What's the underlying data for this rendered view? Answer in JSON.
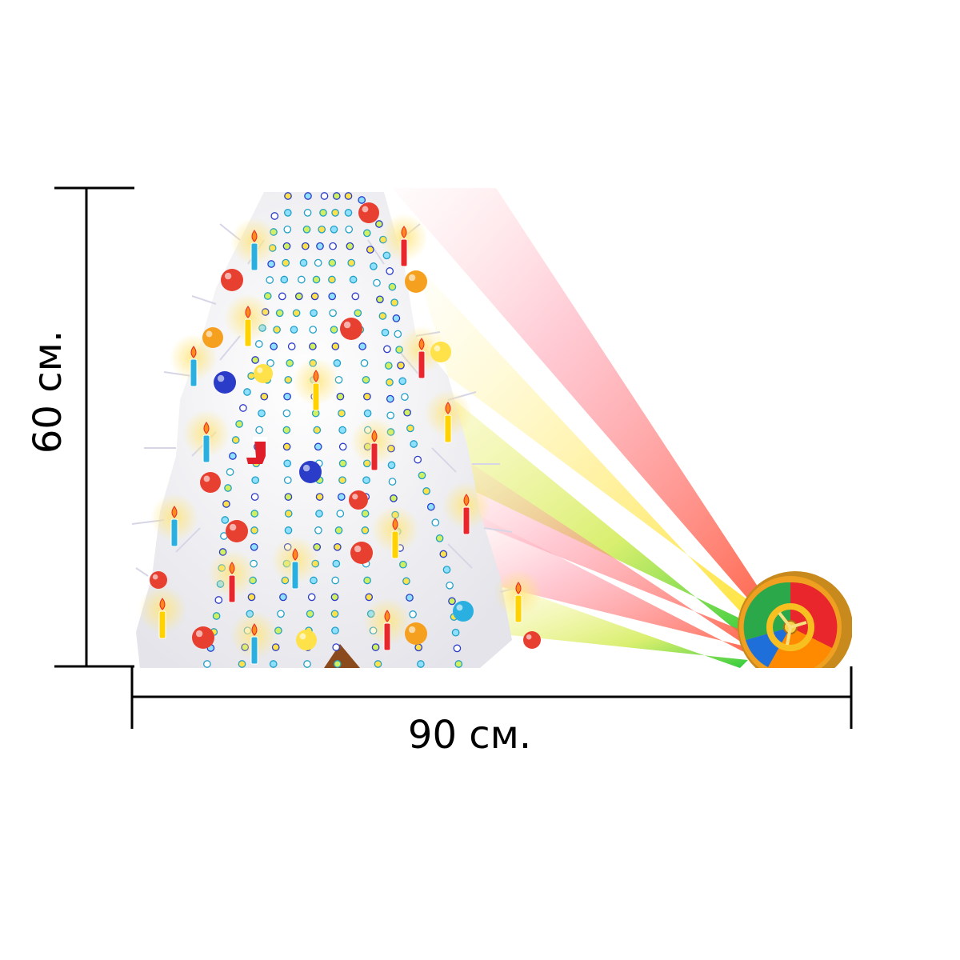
{
  "dimensions": {
    "height_label": "60 см.",
    "width_label": "90 см."
  },
  "artwork": {
    "background": "#ffffff",
    "tree_color": "#f4f4f6",
    "line_color": "#000000",
    "wheel_colors": [
      "#e8262b",
      "#ffd200",
      "#2aa84a",
      "#1e6fd9",
      "#ff8a00"
    ],
    "ornament_colors": [
      "#e84030",
      "#f6a020",
      "#2a3cc8",
      "#ffe24a",
      "#2ab0e0",
      "#c43cc8"
    ],
    "candle_colors": [
      "#2ab0e0",
      "#e8262b",
      "#ffd200"
    ]
  }
}
